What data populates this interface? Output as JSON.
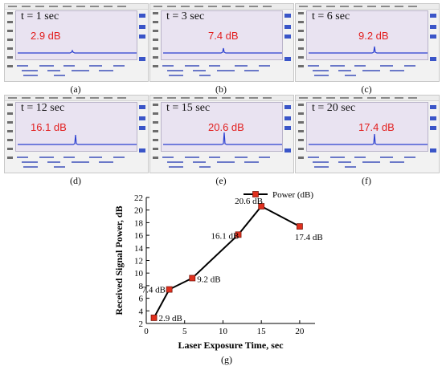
{
  "panels": [
    {
      "time": "t = 1 sec",
      "power": "2.9 dB",
      "caption": "(a)"
    },
    {
      "time": "t = 3 sec",
      "power": "7.4 dB",
      "caption": "(b)"
    },
    {
      "time": "t = 6 sec",
      "power": "9.2 dB",
      "caption": "(c)"
    },
    {
      "time": "t = 12 sec",
      "power": "16.1 dB",
      "caption": "(d)"
    },
    {
      "time": "t = 15 sec",
      "power": "20.6 dB",
      "caption": "(e)"
    },
    {
      "time": "t = 20 sec",
      "power": "17.4 dB",
      "caption": "(f)"
    }
  ],
  "chart_data": {
    "type": "line",
    "x": [
      1,
      3,
      6,
      12,
      15,
      20
    ],
    "series": [
      {
        "name": "Power (dB)",
        "values": [
          2.9,
          7.4,
          9.2,
          16.1,
          20.6,
          17.4
        ]
      }
    ],
    "point_labels": [
      "2.9 dB",
      "7.4 dB",
      "9.2 dB",
      "16.1 dB",
      "20.6 dB",
      "17.4 dB"
    ],
    "xlabel": "Laser Exposure Time, sec",
    "ylabel": "Received Signal Power, dB",
    "xlim": [
      0,
      22
    ],
    "ylim": [
      2,
      22
    ],
    "xticks": [
      0,
      5,
      10,
      15,
      20
    ],
    "yticks": [
      2,
      4,
      6,
      8,
      10,
      12,
      14,
      16,
      18,
      20,
      22
    ],
    "grid": false,
    "legend_position": "top-right",
    "caption": "(g)",
    "line_color": "#000000",
    "marker_color": "#e0301e"
  }
}
